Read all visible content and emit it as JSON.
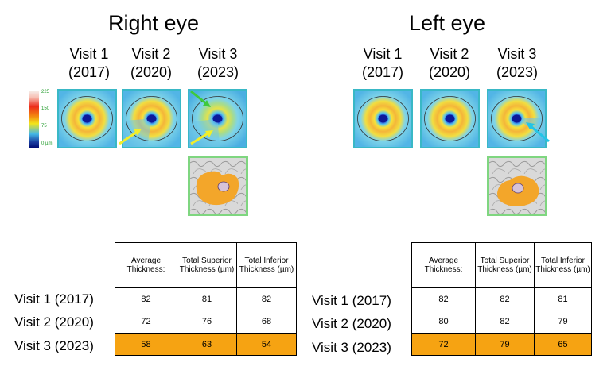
{
  "scale_bar": {
    "labels": [
      "225",
      "150",
      "75",
      "0 µm"
    ]
  },
  "colors": {
    "highlight_row": "#f6a312",
    "scan_border": "#39b8c6",
    "map_border": "#7fd680",
    "arrow_yellow": "#f2ee2a",
    "arrow_green": "#3ec93e",
    "arrow_cyan": "#22c4e6"
  },
  "right_eye": {
    "title": "Right eye",
    "visits": [
      {
        "label": "Visit 1",
        "year": "(2017)"
      },
      {
        "label": "Visit 2",
        "year": "(2020)"
      },
      {
        "label": "Visit 3",
        "year": "(2023)"
      }
    ],
    "table": {
      "headers": [
        "Average Thickness:",
        "Total Superior Thickness (µm)",
        "Total Inferior Thickness (µm)"
      ],
      "rows": [
        {
          "label": "Visit 1 (2017)",
          "values": [
            "82",
            "81",
            "82"
          ]
        },
        {
          "label": "Visit 2 (2020)",
          "values": [
            "72",
            "76",
            "68"
          ]
        },
        {
          "label": "Visit 3 (2023)",
          "values": [
            "58",
            "63",
            "54"
          ]
        }
      ]
    }
  },
  "left_eye": {
    "title": "Left eye",
    "visits": [
      {
        "label": "Visit 1",
        "year": "(2017)"
      },
      {
        "label": "Visit 2",
        "year": "(2020)"
      },
      {
        "label": "Visit 3",
        "year": "(2023)"
      }
    ],
    "table": {
      "headers": [
        "Average Thickness:",
        "Total Superior Thickness (µm)",
        "Total Inferior Thickness (µm)"
      ],
      "rows": [
        {
          "label": "Visit 1 (2017)",
          "values": [
            "82",
            "82",
            "81"
          ]
        },
        {
          "label": "Visit 2 (2020)",
          "values": [
            "80",
            "82",
            "79"
          ]
        },
        {
          "label": "Visit 3 (2023)",
          "values": [
            "72",
            "79",
            "65"
          ]
        }
      ]
    }
  }
}
